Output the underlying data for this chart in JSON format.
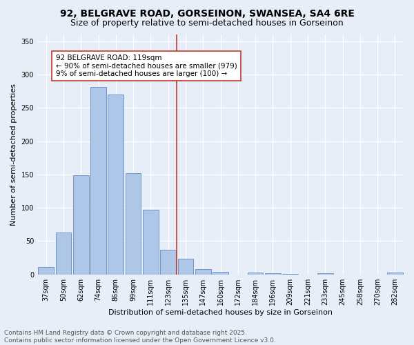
{
  "title": "92, BELGRAVE ROAD, GORSEINON, SWANSEA, SA4 6RE",
  "subtitle": "Size of property relative to semi-detached houses in Gorseinon",
  "xlabel": "Distribution of semi-detached houses by size in Gorseinon",
  "ylabel": "Number of semi-detached properties",
  "bar_labels": [
    "37sqm",
    "50sqm",
    "62sqm",
    "74sqm",
    "86sqm",
    "99sqm",
    "111sqm",
    "123sqm",
    "135sqm",
    "147sqm",
    "160sqm",
    "172sqm",
    "184sqm",
    "196sqm",
    "209sqm",
    "221sqm",
    "233sqm",
    "245sqm",
    "258sqm",
    "270sqm",
    "282sqm"
  ],
  "bar_values": [
    11,
    63,
    149,
    281,
    270,
    152,
    97,
    37,
    23,
    8,
    4,
    0,
    3,
    2,
    1,
    0,
    2,
    0,
    0,
    0,
    3
  ],
  "bar_color": "#aec6e8",
  "bar_edgecolor": "#5b8ac4",
  "vline_color": "#c0392b",
  "annotation_title": "92 BELGRAVE ROAD: 119sqm",
  "annotation_line1": "← 90% of semi-detached houses are smaller (979)",
  "annotation_line2": "9% of semi-detached houses are larger (100) →",
  "annotation_box_color": "#ffffff",
  "annotation_box_edgecolor": "#c0392b",
  "ylim": [
    0,
    360
  ],
  "yticks": [
    0,
    50,
    100,
    150,
    200,
    250,
    300,
    350
  ],
  "background_color": "#e8eef8",
  "footer_line1": "Contains HM Land Registry data © Crown copyright and database right 2025.",
  "footer_line2": "Contains public sector information licensed under the Open Government Licence v3.0.",
  "title_fontsize": 10,
  "subtitle_fontsize": 9,
  "axis_label_fontsize": 8,
  "tick_fontsize": 7,
  "annotation_fontsize": 7.5,
  "footer_fontsize": 6.5
}
